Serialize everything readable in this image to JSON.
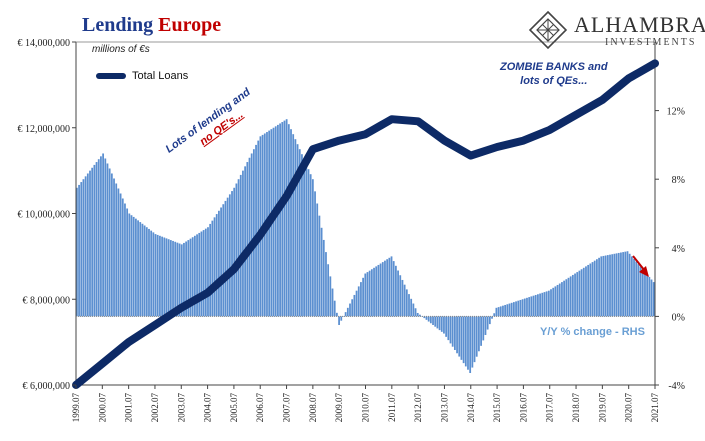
{
  "title": {
    "part1": "Lending",
    "part2": "Europe"
  },
  "subtitle": "millions of €s",
  "legend": {
    "label": "Total Loans"
  },
  "logo": {
    "brand": "ALHAMBRA",
    "sub": "INVESTMENTS"
  },
  "annotations": {
    "lending_line1": "Lots of lending and",
    "lending_line2": "no QE's...",
    "zombie_line1": "ZOMBIE BANKS and",
    "zombie_line2": "lots of QEs...",
    "yy": "Y/Y % change - RHS"
  },
  "colors": {
    "title_blue": "#1f3b8c",
    "title_red": "#c00000",
    "line": "#0d2a66",
    "bars": "#5b8fd0",
    "yy_label": "#6a9fd4",
    "arrow": "#c00000"
  },
  "chart_data": {
    "type": "bar+line",
    "x_start": "1999.07",
    "x_end": "2021.07",
    "xlabels": [
      "1999.07",
      "2000.07",
      "2001.07",
      "2002.07",
      "2003.07",
      "2004.07",
      "2005.07",
      "2006.07",
      "2007.07",
      "2008.07",
      "2009.07",
      "2010.07",
      "2011.07",
      "2012.07",
      "2013.07",
      "2014.07",
      "2015.07",
      "2016.07",
      "2017.07",
      "2018.07",
      "2019.07",
      "2020.07",
      "2021.07"
    ],
    "left_axis": {
      "ticks": [
        "€ 6,000,000",
        "€ 8,000,000",
        "€ 10,000,000",
        "€ 12,000,000",
        "€ 14,000,000"
      ],
      "min": 6000000,
      "max": 14000000
    },
    "right_axis": {
      "ticks": [
        "-4%",
        "0%",
        "4%",
        "8%",
        "12%"
      ],
      "min": -4,
      "max": 16
    },
    "series": [
      {
        "name": "Total Loans",
        "kind": "line",
        "axis": "left",
        "x": [
          "1999.07",
          "2000.07",
          "2001.07",
          "2002.07",
          "2003.07",
          "2004.07",
          "2005.07",
          "2006.07",
          "2007.07",
          "2008.07",
          "2009.07",
          "2010.07",
          "2011.07",
          "2012.07",
          "2013.07",
          "2014.07",
          "2015.07",
          "2016.07",
          "2017.07",
          "2018.07",
          "2019.07",
          "2020.07",
          "2021.07"
        ],
        "values": [
          6000000,
          6500000,
          7000000,
          7400000,
          7800000,
          8150000,
          8700000,
          9500000,
          10400000,
          11500000,
          11700000,
          11850000,
          12200000,
          12150000,
          11700000,
          11350000,
          11550000,
          11700000,
          11950000,
          12300000,
          12650000,
          13150000,
          13500000
        ]
      },
      {
        "name": "Y/Y % change",
        "kind": "bar",
        "axis": "right",
        "x": [
          "1999.07",
          "2000.07",
          "2001.07",
          "2002.07",
          "2003.07",
          "2004.07",
          "2005.07",
          "2006.07",
          "2007.07",
          "2008.07",
          "2009.07",
          "2010.07",
          "2011.07",
          "2012.07",
          "2013.07",
          "2014.07",
          "2015.07",
          "2016.07",
          "2017.07",
          "2018.07",
          "2019.07",
          "2020.07",
          "2021.07"
        ],
        "values": [
          7.5,
          9.5,
          6.0,
          4.8,
          4.2,
          5.2,
          7.5,
          10.5,
          11.5,
          8.0,
          -0.5,
          2.5,
          3.5,
          0.2,
          -1.0,
          -3.3,
          0.5,
          1.0,
          1.5,
          2.5,
          3.5,
          3.8,
          2.0
        ]
      }
    ],
    "grid": false,
    "legend_position": "top-left"
  }
}
